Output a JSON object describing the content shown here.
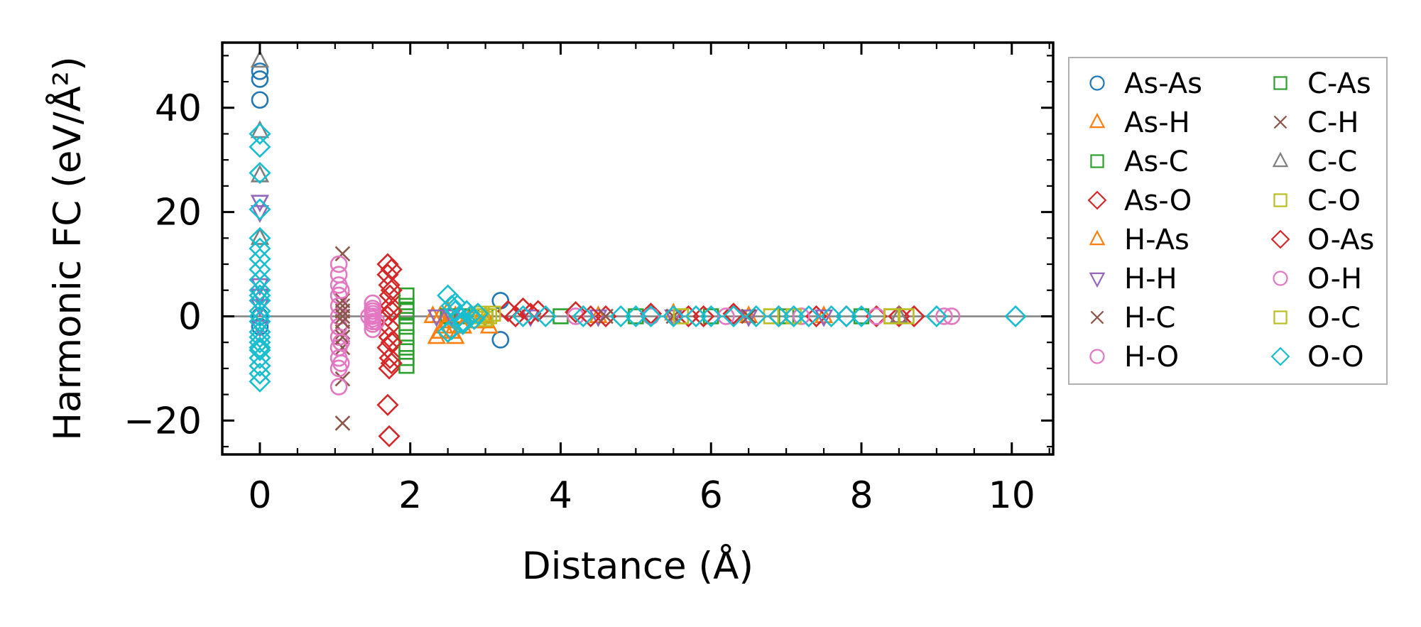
{
  "chart_data": {
    "type": "scatter",
    "title": "",
    "xlabel": "Distance (Å)",
    "ylabel": "Harmonic FC (eV/Å²)",
    "xlim": [
      -0.5,
      10.55
    ],
    "ylim": [
      -26.5,
      52.5
    ],
    "xticks": [
      0,
      2,
      4,
      6,
      8,
      10
    ],
    "xtick_labels": [
      "0",
      "2",
      "4",
      "6",
      "8",
      "10"
    ],
    "yticks": [
      -20,
      0,
      20,
      40
    ],
    "ytick_labels": [
      "−20",
      "0",
      "20",
      "40"
    ],
    "zero_line": true,
    "grid": false,
    "legend_position": "outside-right",
    "legend_columns": 2,
    "series": [
      {
        "name": "As-As",
        "marker": "circle",
        "color": "#1f77b4",
        "x": [
          0,
          0,
          0,
          0,
          0,
          3.2,
          3.2
        ],
        "y": [
          47,
          45.5,
          41.5,
          0,
          -2,
          3,
          -4.5
        ]
      },
      {
        "name": "As-H",
        "marker": "triangle-up",
        "color": "#ff7f0e",
        "x": [
          2.35,
          2.4,
          2.45,
          2.5,
          2.55,
          2.6,
          2.7,
          2.8,
          2.9,
          3.0,
          3.05,
          4.5,
          5.5,
          6.5,
          7.5,
          8.5
        ],
        "y": [
          -4,
          0,
          -2,
          1,
          -3,
          0,
          -2,
          0,
          -1,
          0,
          -2,
          0,
          0.5,
          0,
          0,
          0
        ]
      },
      {
        "name": "As-C",
        "marker": "square",
        "color": "#2ca02c",
        "x": [
          2.5,
          2.7,
          3.0,
          4.0,
          5.0,
          6.0,
          7.0,
          8.0
        ],
        "y": [
          0,
          0,
          0,
          0,
          0,
          0,
          0,
          0
        ]
      },
      {
        "name": "As-O",
        "marker": "diamond",
        "color": "#d62728",
        "x": [
          1.7,
          1.7,
          1.72,
          1.73,
          1.74,
          1.7,
          1.72,
          1.72,
          1.7,
          1.73,
          1.72,
          1.7,
          1.72,
          3.3,
          3.5,
          3.7,
          4.2,
          4.6,
          5.2,
          5.7,
          6.3,
          6.9,
          7.4,
          8.2,
          8.5,
          8.7
        ],
        "y": [
          10,
          8,
          6,
          4,
          2,
          0,
          -2,
          -4,
          -6,
          -8,
          -10,
          -17,
          -23,
          1,
          1.5,
          1,
          0.8,
          0,
          0.5,
          0,
          0.5,
          0,
          0,
          0,
          0,
          0
        ]
      },
      {
        "name": "H-As",
        "marker": "triangle-up",
        "color": "#ff7f0e",
        "x": [
          2.3,
          2.4,
          2.5,
          2.6,
          2.7,
          2.85,
          3.0
        ],
        "y": [
          0,
          -3,
          -1,
          -4,
          -2,
          0,
          -1
        ]
      },
      {
        "name": "H-H",
        "marker": "triangle-down",
        "color": "#9467bd",
        "x": [
          0,
          0,
          0,
          0,
          0,
          0,
          2.35,
          2.55,
          3.6,
          4.5,
          5.5,
          6.5,
          7.5
        ],
        "y": [
          22,
          20,
          6,
          4,
          2,
          -2,
          0,
          0,
          0,
          0,
          0,
          0,
          0
        ]
      },
      {
        "name": "H-C",
        "marker": "x",
        "color": "#8c564b",
        "x": [
          1.1,
          1.1,
          1.1,
          1.1,
          1.1,
          1.1,
          4.6,
          5.5,
          6.5
        ],
        "y": [
          12,
          2,
          -3,
          -6,
          -12,
          -20.5,
          0,
          0,
          0
        ]
      },
      {
        "name": "H-O",
        "marker": "circle",
        "color": "#e377c2",
        "x": [
          1.05,
          1.05,
          1.05,
          1.05,
          1.05,
          1.05,
          1.05,
          1.05,
          1.05,
          1.05,
          1.05,
          1.05,
          1.5,
          1.5,
          1.5,
          1.5,
          1.5,
          1.5,
          1.5,
          1.5,
          1.5,
          4.2,
          5.2,
          6.2,
          7.2,
          8.2,
          9.1,
          9.2
        ],
        "y": [
          10,
          8,
          6,
          4,
          2,
          0,
          -2,
          -4,
          -6,
          -8,
          -10,
          -13.5,
          2.5,
          1.5,
          1,
          0.5,
          0,
          -0.5,
          -1,
          -1.5,
          -2.5,
          0,
          0,
          0,
          0,
          0,
          0,
          0
        ]
      },
      {
        "name": "C-As",
        "marker": "square",
        "color": "#2ca02c",
        "x": [
          1.95,
          1.95,
          1.95,
          1.95,
          1.95,
          1.95,
          1.95,
          1.95,
          1.95
        ],
        "y": [
          4,
          2,
          0,
          -2,
          -4,
          -6,
          -8,
          -9.5,
          1
        ]
      },
      {
        "name": "C-H",
        "marker": "x",
        "color": "#8c564b",
        "x": [
          1.1,
          1.1,
          1.1,
          1.1,
          1.1
        ],
        "y": [
          3,
          1,
          0,
          -1,
          -4
        ]
      },
      {
        "name": "C-C",
        "marker": "triangle-up",
        "color": "#7f7f7f",
        "x": [
          0,
          0,
          0,
          0,
          8.5
        ],
        "y": [
          49,
          35.5,
          27,
          15,
          0
        ]
      },
      {
        "name": "C-O",
        "marker": "square",
        "color": "#bcbd22",
        "x": [
          2.9,
          3.0,
          3.1,
          5.6,
          6.8,
          8.4,
          8.6
        ],
        "y": [
          0,
          -0.5,
          0.5,
          0,
          0,
          0,
          0
        ]
      },
      {
        "name": "O-As",
        "marker": "diamond",
        "color": "#d62728",
        "x": [
          1.75,
          1.75,
          1.75,
          1.75,
          1.75,
          3.4,
          3.6,
          4.4,
          5.9,
          7.8
        ],
        "y": [
          9,
          5,
          1,
          -5,
          -9,
          0,
          0.5,
          0,
          0,
          0
        ]
      },
      {
        "name": "O-H",
        "marker": "circle",
        "color": "#e377c2",
        "x": [
          1.08,
          1.08,
          1.08,
          1.45,
          1.5,
          1.55
        ],
        "y": [
          5,
          -5,
          -9,
          0,
          1,
          -1
        ]
      },
      {
        "name": "O-C",
        "marker": "square",
        "color": "#bcbd22",
        "x": [
          2.95,
          3.05,
          5.6,
          7.1,
          8.4
        ],
        "y": [
          0.5,
          0,
          0,
          0,
          0
        ]
      },
      {
        "name": "O-O",
        "marker": "diamond",
        "color": "#17becf",
        "x": [
          0,
          0,
          0,
          0,
          0,
          0,
          0,
          0,
          0,
          0,
          0,
          0,
          0,
          0,
          0,
          0,
          0,
          0,
          0,
          0,
          0,
          0,
          0,
          0,
          2.5,
          2.55,
          2.6,
          2.65,
          2.7,
          2.75,
          2.8,
          2.85,
          2.9,
          2.55,
          2.7,
          2.5,
          2.6,
          3.5,
          3.8,
          4.3,
          4.8,
          5.0,
          5.2,
          5.5,
          5.8,
          6.0,
          6.3,
          6.6,
          6.9,
          7.1,
          7.3,
          7.6,
          7.8,
          8.0,
          9.0,
          10.05
        ],
        "y": [
          35,
          32.5,
          27.5,
          20.5,
          15,
          13,
          11,
          9,
          7,
          5,
          3,
          1,
          0,
          -1,
          -3,
          -5,
          -6.5,
          -8,
          -9.5,
          -11,
          -12.5,
          -6,
          -4,
          4,
          4,
          2,
          1,
          0,
          -1,
          1,
          0,
          -0.5,
          0.5,
          -2.5,
          -1.5,
          -3,
          2.5,
          0,
          0,
          0,
          0,
          0,
          0,
          0,
          0,
          0,
          0,
          0,
          0,
          0,
          0,
          0,
          0,
          0,
          0,
          0
        ]
      }
    ]
  }
}
